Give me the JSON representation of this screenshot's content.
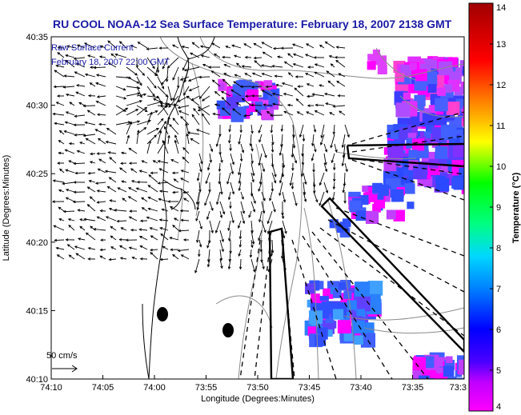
{
  "title": "RU COOL  NOAA-12  Sea Surface Temperature:  February 18, 2007 2138 GMT",
  "legend": {
    "line1": "Raw Surface Current",
    "line2": "February 18, 2007 22:00 GMT"
  },
  "scale_label": "50 cm/s",
  "colorbar": {
    "label": "Temperature (°C)",
    "min": 4,
    "max": 14,
    "ticks": [
      "4",
      "5",
      "6",
      "7",
      "8",
      "9",
      "10",
      "11",
      "12",
      "13",
      "14"
    ]
  },
  "axes": {
    "xlabel": "Longitude (Degrees:Minutes)",
    "ylabel": "Latitude (Degrees:Minutes)",
    "x_ticks": [
      "74:10",
      "74:05",
      "74:00",
      "73:55",
      "73:50",
      "73:45",
      "73:40",
      "73:35",
      "73:3"
    ],
    "y_ticks": [
      "40:35",
      "40:30",
      "40:25",
      "40:20",
      "40:15",
      "40:10"
    ]
  },
  "colors": {
    "title": "#1a1aa6",
    "legend_text": "#1a1aa6"
  }
}
